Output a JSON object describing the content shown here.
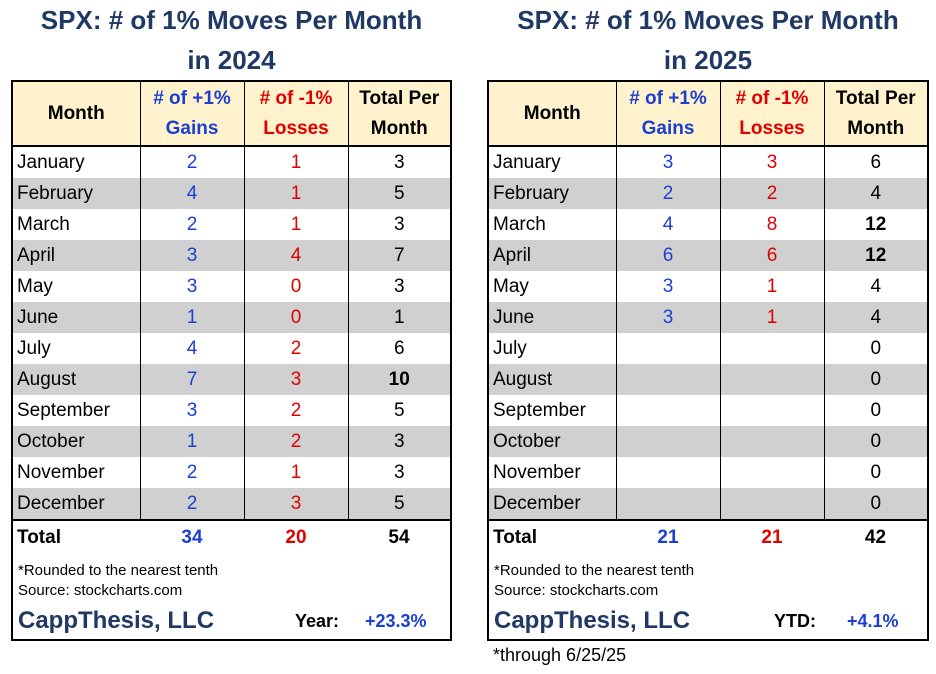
{
  "left": {
    "title_line1": "SPX:  # of 1% Moves Per Month",
    "title_line2": "in 2024",
    "headers": [
      "Month",
      "# of +1%",
      "Gains",
      "# of -1%",
      "Losses",
      "Total Per",
      "Month"
    ],
    "rows": [
      {
        "month": "January",
        "gains": "2",
        "losses": "1",
        "total": "3",
        "bold": false
      },
      {
        "month": "February",
        "gains": "4",
        "losses": "1",
        "total": "5",
        "bold": false
      },
      {
        "month": "March",
        "gains": "2",
        "losses": "1",
        "total": "3",
        "bold": false
      },
      {
        "month": "April",
        "gains": "3",
        "losses": "4",
        "total": "7",
        "bold": false
      },
      {
        "month": "May",
        "gains": "3",
        "losses": "0",
        "total": "3",
        "bold": false
      },
      {
        "month": "June",
        "gains": "1",
        "losses": "0",
        "total": "1",
        "bold": false
      },
      {
        "month": "July",
        "gains": "4",
        "losses": "2",
        "total": "6",
        "bold": false
      },
      {
        "month": "August",
        "gains": "7",
        "losses": "3",
        "total": "10",
        "bold": true
      },
      {
        "month": "September",
        "gains": "3",
        "losses": "2",
        "total": "5",
        "bold": false
      },
      {
        "month": "October",
        "gains": "1",
        "losses": "2",
        "total": "3",
        "bold": false
      },
      {
        "month": "November",
        "gains": "2",
        "losses": "1",
        "total": "3",
        "bold": false
      },
      {
        "month": "December",
        "gains": "2",
        "losses": "3",
        "total": "5",
        "bold": false
      }
    ],
    "total": {
      "label": "Total",
      "gains": "34",
      "losses": "20",
      "total": "54"
    },
    "note1": "*Rounded to the nearest tenth",
    "note2": "Source: stockcharts.com",
    "brand": "CappThesis, LLC",
    "perf_label": "Year:",
    "perf_value": "+23.3%"
  },
  "right": {
    "title_line1": "SPX:  # of 1% Moves Per Month",
    "title_line2": "in 2025",
    "headers": [
      "Month",
      "# of +1%",
      "Gains",
      "# of -1%",
      "Losses",
      "Total Per",
      "Month"
    ],
    "rows": [
      {
        "month": "January",
        "gains": "3",
        "losses": "3",
        "total": "6",
        "bold": false
      },
      {
        "month": "February",
        "gains": "2",
        "losses": "2",
        "total": "4",
        "bold": false
      },
      {
        "month": "March",
        "gains": "4",
        "losses": "8",
        "total": "12",
        "bold": true
      },
      {
        "month": "April",
        "gains": "6",
        "losses": "6",
        "total": "12",
        "bold": true
      },
      {
        "month": "May",
        "gains": "3",
        "losses": "1",
        "total": "4",
        "bold": false
      },
      {
        "month": "June",
        "gains": "3",
        "losses": "1",
        "total": "4",
        "bold": false
      },
      {
        "month": "July",
        "gains": "",
        "losses": "",
        "total": "0",
        "bold": false
      },
      {
        "month": "August",
        "gains": "",
        "losses": "",
        "total": "0",
        "bold": false
      },
      {
        "month": "September",
        "gains": "",
        "losses": "",
        "total": "0",
        "bold": false
      },
      {
        "month": "October",
        "gains": "",
        "losses": "",
        "total": "0",
        "bold": false
      },
      {
        "month": "November",
        "gains": "",
        "losses": "",
        "total": "0",
        "bold": false
      },
      {
        "month": "December",
        "gains": "",
        "losses": "",
        "total": "0",
        "bold": false
      }
    ],
    "total": {
      "label": "Total",
      "gains": "21",
      "losses": "21",
      "total": "42"
    },
    "note1": "*Rounded to the nearest tenth",
    "note2": "Source: stockcharts.com",
    "brand": "CappThesis, LLC",
    "perf_label": "YTD:",
    "perf_value": "+4.1%"
  },
  "footnote": "*through 6/25/25",
  "colors": {
    "title": "#1f3864",
    "gain": "#1b3fd1",
    "loss": "#e00000",
    "header_bg": "#fff2cc",
    "alt_row_bg": "#d0d0d0"
  }
}
